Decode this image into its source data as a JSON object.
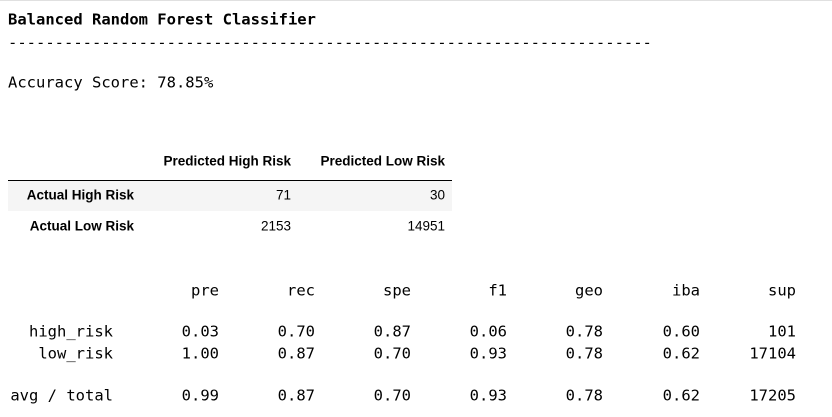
{
  "title": "Balanced Random Forest Classifier",
  "separator": "---------------------------------------------------------------------",
  "accuracy": "Accuracy Score: 78.85%",
  "confusion_matrix": {
    "columns": [
      "Predicted High Risk",
      "Predicted Low Risk"
    ],
    "rows": [
      {
        "label": "Actual High Risk",
        "values": [
          "71",
          "30"
        ]
      },
      {
        "label": "Actual Low Risk",
        "values": [
          "2153",
          "14951"
        ]
      }
    ]
  },
  "report": {
    "columns": [
      "pre",
      "rec",
      "spe",
      "f1",
      "geo",
      "iba",
      "sup"
    ],
    "rows": [
      {
        "label": "high_risk",
        "values": [
          "0.03",
          "0.70",
          "0.87",
          "0.06",
          "0.78",
          "0.60",
          "101"
        ]
      },
      {
        "label": "low_risk",
        "values": [
          "1.00",
          "0.87",
          "0.70",
          "0.93",
          "0.78",
          "0.62",
          "17104"
        ]
      },
      {
        "label": "avg / total",
        "values": [
          "0.99",
          "0.87",
          "0.70",
          "0.93",
          "0.78",
          "0.62",
          "17205"
        ]
      }
    ]
  }
}
